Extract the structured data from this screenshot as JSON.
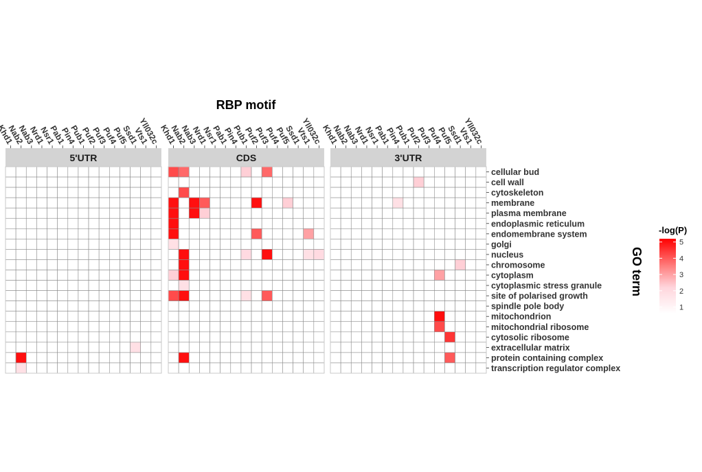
{
  "chart_data": {
    "type": "heatmap",
    "title": "RBP motif",
    "ylabel": "GO term",
    "legend": {
      "title": "-log(P)",
      "range": [
        0.6,
        5.2
      ],
      "ticks": [
        1,
        2,
        3,
        4,
        5
      ],
      "low_color": "#ffffff",
      "high_color": "#ff0000",
      "position": "right"
    },
    "rbps": [
      "Khd1",
      "Nab2",
      "Nab3",
      "Nrd1",
      "Nsr1",
      "Pab1",
      "Pin4",
      "Pub1",
      "Puf2",
      "Puf3",
      "Puf4",
      "Puf5",
      "Ssd1",
      "Vts1",
      "Yll032c"
    ],
    "go_terms": [
      "cellular bud",
      "cell wall",
      "cytoskeleton",
      "membrane",
      "plasma membrane",
      "endoplasmic reticulum",
      "endomembrane system",
      "golgi",
      "nucleus",
      "chromosome",
      "cytoplasm",
      "cytoplasmic stress granule",
      "site of polarised growth",
      "spindle pole body",
      "mitochondrion",
      "mitochondrial ribosome",
      "cytosolic ribosome",
      "extracellular matrix",
      "protein containing complex",
      "transcription regulator complex"
    ],
    "panels": [
      {
        "name": "5'UTR",
        "cells": [
          {
            "rbp": "Nab2",
            "term": "protein containing complex",
            "value": 5.0
          },
          {
            "rbp": "Nab2",
            "term": "transcription regulator complex",
            "value": 1.8
          },
          {
            "rbp": "Ssd1",
            "term": "extracellular matrix",
            "value": 1.8
          }
        ]
      },
      {
        "name": "CDS",
        "cells": [
          {
            "rbp": "Khd1",
            "term": "cellular bud",
            "value": 4.2
          },
          {
            "rbp": "Nab2",
            "term": "cellular bud",
            "value": 3.8
          },
          {
            "rbp": "Pub1",
            "term": "cellular bud",
            "value": 2.3
          },
          {
            "rbp": "Puf3",
            "term": "cellular bud",
            "value": 3.8
          },
          {
            "rbp": "Nab2",
            "term": "cytoskeleton",
            "value": 4.2
          },
          {
            "rbp": "Khd1",
            "term": "membrane",
            "value": 5.0
          },
          {
            "rbp": "Nab3",
            "term": "membrane",
            "value": 5.0
          },
          {
            "rbp": "Nrd1",
            "term": "membrane",
            "value": 4.0
          },
          {
            "rbp": "Puf2",
            "term": "membrane",
            "value": 5.0
          },
          {
            "rbp": "Puf5",
            "term": "membrane",
            "value": 2.3
          },
          {
            "rbp": "Khd1",
            "term": "plasma membrane",
            "value": 5.0
          },
          {
            "rbp": "Nab3",
            "term": "plasma membrane",
            "value": 5.0
          },
          {
            "rbp": "Nrd1",
            "term": "plasma membrane",
            "value": 2.3
          },
          {
            "rbp": "Khd1",
            "term": "endoplasmic reticulum",
            "value": 5.0
          },
          {
            "rbp": "Khd1",
            "term": "endomembrane system",
            "value": 5.0
          },
          {
            "rbp": "Puf2",
            "term": "endomembrane system",
            "value": 4.0
          },
          {
            "rbp": "Vts1",
            "term": "endomembrane system",
            "value": 3.0
          },
          {
            "rbp": "Khd1",
            "term": "golgi",
            "value": 1.8
          },
          {
            "rbp": "Nab2",
            "term": "nucleus",
            "value": 5.0
          },
          {
            "rbp": "Pub1",
            "term": "nucleus",
            "value": 2.0
          },
          {
            "rbp": "Puf3",
            "term": "nucleus",
            "value": 5.0
          },
          {
            "rbp": "Vts1",
            "term": "nucleus",
            "value": 1.8
          },
          {
            "rbp": "Yll032c",
            "term": "nucleus",
            "value": 2.0
          },
          {
            "rbp": "Nab2",
            "term": "chromosome",
            "value": 5.0
          },
          {
            "rbp": "Khd1",
            "term": "cytoplasm",
            "value": 2.3
          },
          {
            "rbp": "Nab2",
            "term": "cytoplasm",
            "value": 5.0
          },
          {
            "rbp": "Nab2",
            "term": "cytoplasmic stress granule",
            "value": 1.8
          },
          {
            "rbp": "Khd1",
            "term": "site of polarised growth",
            "value": 4.2
          },
          {
            "rbp": "Nab2",
            "term": "site of polarised growth",
            "value": 5.0
          },
          {
            "rbp": "Pub1",
            "term": "site of polarised growth",
            "value": 1.8
          },
          {
            "rbp": "Puf3",
            "term": "site of polarised growth",
            "value": 4.0
          },
          {
            "rbp": "Nab2",
            "term": "protein containing complex",
            "value": 5.0
          }
        ]
      },
      {
        "name": "3'UTR",
        "cells": [
          {
            "rbp": "Puf2",
            "term": "cell wall",
            "value": 2.3
          },
          {
            "rbp": "Pin4",
            "term": "membrane",
            "value": 1.8
          },
          {
            "rbp": "Ssd1",
            "term": "chromosome",
            "value": 2.3
          },
          {
            "rbp": "Puf4",
            "term": "cytoplasm",
            "value": 3.0
          },
          {
            "rbp": "Puf4",
            "term": "mitochondrion",
            "value": 5.0
          },
          {
            "rbp": "Puf4",
            "term": "mitochondrial ribosome",
            "value": 4.2
          },
          {
            "rbp": "Puf5",
            "term": "cytosolic ribosome",
            "value": 4.5
          },
          {
            "rbp": "Puf5",
            "term": "protein containing complex",
            "value": 4.0
          }
        ]
      }
    ]
  }
}
